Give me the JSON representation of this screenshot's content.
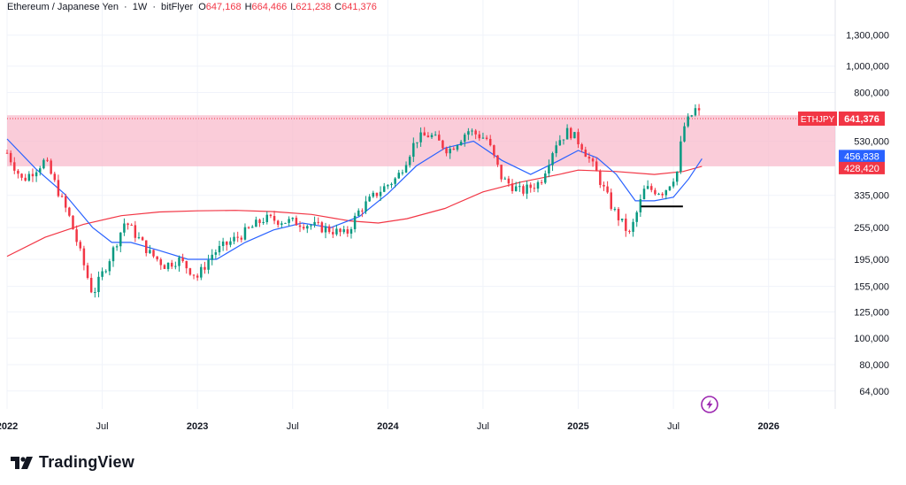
{
  "header": {
    "pair": "Ethereum / Japanese Yen",
    "interval": "1W",
    "exchange": "bitFlyer",
    "open_label": "O",
    "open": "647,168",
    "high_label": "H",
    "high": "664,466",
    "low_label": "L",
    "low": "621,238",
    "close_label": "C",
    "close": "641,376"
  },
  "brand": {
    "name": "TradingView"
  },
  "colors": {
    "up": "#089981",
    "down": "#f23645",
    "zone": "#f8bbcc",
    "ma_fast": "#2962ff",
    "ma_slow": "#f23645",
    "grid": "#f0f3fa"
  },
  "chart_data": {
    "type": "candlestick",
    "title": "Ethereum / Japanese Yen · 1W · bitFlyer",
    "scale": "log",
    "xlim": [
      2022.0,
      2026.35
    ],
    "ylim": [
      55000,
      1750000
    ],
    "y_ticks": [
      {
        "value": 1300000,
        "label": "1,300,000"
      },
      {
        "value": 1000000,
        "label": "1,000,000"
      },
      {
        "value": 800000,
        "label": "800,000"
      },
      {
        "value": 530000,
        "label": "530,000"
      },
      {
        "value": 335000,
        "label": "335,000"
      },
      {
        "value": 255000,
        "label": "255,000"
      },
      {
        "value": 195000,
        "label": "195,000"
      },
      {
        "value": 155000,
        "label": "155,000"
      },
      {
        "value": 125000,
        "label": "125,000"
      },
      {
        "value": 100000,
        "label": "100,000"
      },
      {
        "value": 80000,
        "label": "80,000"
      },
      {
        "value": 64000,
        "label": "64,000"
      }
    ],
    "x_ticks": [
      {
        "value": 2022.0,
        "label": "2022"
      },
      {
        "value": 2022.5,
        "label": "Jul"
      },
      {
        "value": 2023.0,
        "label": "2023"
      },
      {
        "value": 2023.5,
        "label": "Jul"
      },
      {
        "value": 2024.0,
        "label": "2024"
      },
      {
        "value": 2024.5,
        "label": "Jul"
      },
      {
        "value": 2025.0,
        "label": "2025"
      },
      {
        "value": 2025.5,
        "label": "Jul"
      },
      {
        "value": 2026.0,
        "label": "2026"
      }
    ],
    "resistance_zone": {
      "low": 428420,
      "high": 660000
    },
    "support_line": {
      "x1": 2025.33,
      "x2": 2025.55,
      "value": 305000
    },
    "price_labels": [
      {
        "name": "ETHJPY",
        "value": 641376,
        "text": "641,376",
        "color": "#f23645"
      },
      {
        "name": "MA fast",
        "value": 456838,
        "text": "456,838",
        "color": "#2962ff"
      },
      {
        "name": "MA slow",
        "value": 428420,
        "text": "428,420",
        "color": "#f23645"
      }
    ],
    "anchors": [
      [
        2022.0,
        480000
      ],
      [
        2022.08,
        380000
      ],
      [
        2022.2,
        450000
      ],
      [
        2022.33,
        275000
      ],
      [
        2022.45,
        145000
      ],
      [
        2022.55,
        205000
      ],
      [
        2022.62,
        270000
      ],
      [
        2022.75,
        205000
      ],
      [
        2022.83,
        185000
      ],
      [
        2022.9,
        195000
      ],
      [
        2023.0,
        168000
      ],
      [
        2023.08,
        205000
      ],
      [
        2023.25,
        245000
      ],
      [
        2023.35,
        275000
      ],
      [
        2023.45,
        270000
      ],
      [
        2023.55,
        265000
      ],
      [
        2023.7,
        250000
      ],
      [
        2023.78,
        240000
      ],
      [
        2023.85,
        295000
      ],
      [
        2023.95,
        345000
      ],
      [
        2024.05,
        390000
      ],
      [
        2024.15,
        540000
      ],
      [
        2024.22,
        560000
      ],
      [
        2024.32,
        490000
      ],
      [
        2024.42,
        580000
      ],
      [
        2024.52,
        540000
      ],
      [
        2024.6,
        385000
      ],
      [
        2024.7,
        345000
      ],
      [
        2024.8,
        375000
      ],
      [
        2024.88,
        520000
      ],
      [
        2024.95,
        580000
      ],
      [
        2025.02,
        510000
      ],
      [
        2025.1,
        400000
      ],
      [
        2025.18,
        300000
      ],
      [
        2025.27,
        240000
      ],
      [
        2025.35,
        355000
      ],
      [
        2025.45,
        345000
      ],
      [
        2025.52,
        410000
      ],
      [
        2025.55,
        590000
      ],
      [
        2025.62,
        700000
      ],
      [
        2025.65,
        641376
      ]
    ],
    "ma_fast": [
      [
        2022.0,
        540000
      ],
      [
        2022.15,
        420000
      ],
      [
        2022.3,
        340000
      ],
      [
        2022.45,
        255000
      ],
      [
        2022.55,
        225000
      ],
      [
        2022.65,
        225000
      ],
      [
        2022.8,
        210000
      ],
      [
        2022.95,
        195000
      ],
      [
        2023.1,
        195000
      ],
      [
        2023.25,
        225000
      ],
      [
        2023.4,
        250000
      ],
      [
        2023.55,
        265000
      ],
      [
        2023.7,
        255000
      ],
      [
        2023.85,
        280000
      ],
      [
        2024.0,
        340000
      ],
      [
        2024.15,
        430000
      ],
      [
        2024.3,
        500000
      ],
      [
        2024.45,
        530000
      ],
      [
        2024.6,
        450000
      ],
      [
        2024.75,
        400000
      ],
      [
        2024.9,
        450000
      ],
      [
        2025.0,
        490000
      ],
      [
        2025.1,
        460000
      ],
      [
        2025.2,
        400000
      ],
      [
        2025.3,
        320000
      ],
      [
        2025.4,
        320000
      ],
      [
        2025.5,
        330000
      ],
      [
        2025.58,
        385000
      ],
      [
        2025.65,
        456838
      ]
    ],
    "ma_slow": [
      [
        2022.0,
        200000
      ],
      [
        2022.2,
        235000
      ],
      [
        2022.4,
        262000
      ],
      [
        2022.6,
        282000
      ],
      [
        2022.8,
        291000
      ],
      [
        2023.0,
        294000
      ],
      [
        2023.2,
        295000
      ],
      [
        2023.4,
        292000
      ],
      [
        2023.6,
        285000
      ],
      [
        2023.8,
        270000
      ],
      [
        2023.95,
        265000
      ],
      [
        2024.1,
        275000
      ],
      [
        2024.3,
        300000
      ],
      [
        2024.5,
        345000
      ],
      [
        2024.7,
        375000
      ],
      [
        2024.9,
        400000
      ],
      [
        2025.0,
        415000
      ],
      [
        2025.2,
        410000
      ],
      [
        2025.4,
        400000
      ],
      [
        2025.55,
        410000
      ],
      [
        2025.65,
        428420
      ]
    ]
  },
  "watermark_icon": "lightning-replay-icon",
  "logo_icon": "tradingview-tv-icon"
}
